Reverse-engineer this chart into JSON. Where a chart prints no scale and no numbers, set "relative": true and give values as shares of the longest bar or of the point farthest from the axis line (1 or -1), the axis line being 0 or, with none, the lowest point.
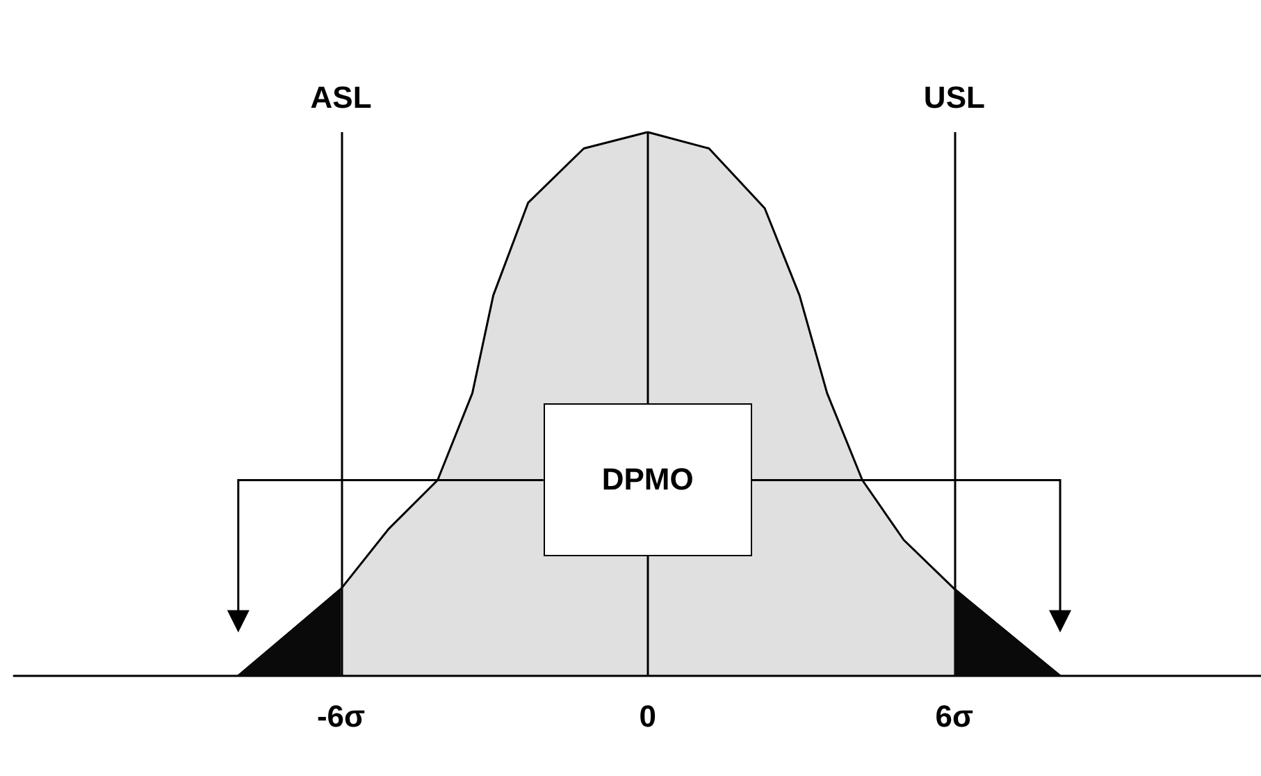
{
  "chart_data": {
    "type": "area",
    "relative": true,
    "xlim": [
      -12.4,
      12
    ],
    "xticks": [
      {
        "value": -6,
        "label": "-6σ"
      },
      0,
      {
        "value": 6,
        "label": "6σ"
      }
    ],
    "tick_labels": "x",
    "grid": false,
    "marker": "none",
    "series": [
      {
        "color": "#000000",
        "x": [
          -8.01,
          -6,
          -5.07,
          -4.11,
          -3.43,
          -3.02,
          -2.34,
          -1.25,
          0,
          1.2,
          2.29,
          2.97,
          3.51,
          4.2,
          5.01,
          6,
          8.07
        ],
        "values": [
          0,
          0.16,
          0.27,
          0.36,
          0.52,
          0.7,
          0.87,
          0.97,
          1,
          0.97,
          0.86,
          0.7,
          0.52,
          0.36,
          0.25,
          0.16,
          0
        ]
      },
      {
        "color": "#0a0a0a",
        "x": [
          -8.01,
          -7,
          -6
        ],
        "values": [
          0,
          0.08,
          0.16
        ]
      },
      {
        "color": "#0a0a0a",
        "x": [
          6,
          7,
          8.07
        ],
        "values": [
          0.16,
          0.08,
          0
        ]
      }
    ],
    "ref_lines": [
      {
        "axis": "x",
        "value": -6,
        "label": "ASL"
      },
      {
        "axis": "x",
        "value": 0,
        "label": null
      },
      {
        "axis": "x",
        "value": 6,
        "label": "USL"
      }
    ],
    "annotations": [
      "DPMO"
    ]
  }
}
